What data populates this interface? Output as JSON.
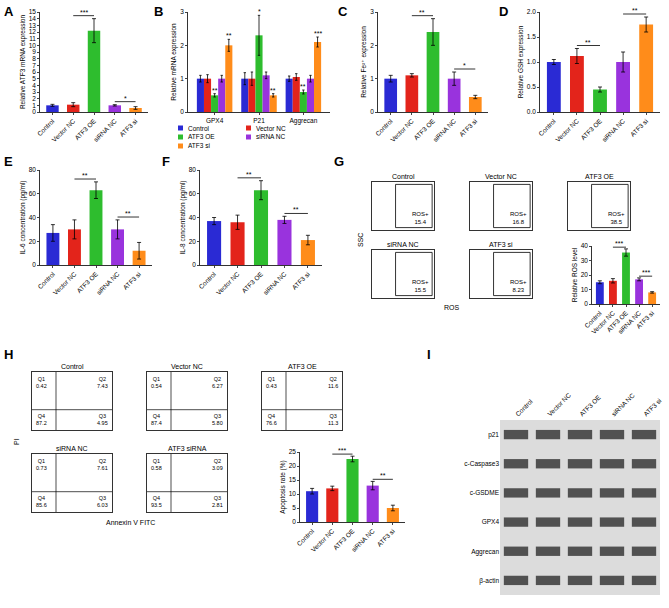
{
  "chart_data": [
    {
      "panel": "A",
      "type": "bar",
      "y_label": "Relative ATF3 mRNA expression",
      "categories": [
        "Control",
        "Vector NC",
        "ATF3 OE",
        "siRNA NC",
        "ATF3 si"
      ],
      "values": [
        1.0,
        1.1,
        12.2,
        1.0,
        0.6
      ],
      "errors": [
        0.15,
        0.3,
        1.8,
        0.1,
        0.2
      ],
      "colors": [
        "#2a2ad4",
        "#e3241b",
        "#2ebd2e",
        "#9933dd",
        "#ff8c1a"
      ],
      "ylim": [
        0,
        15
      ],
      "yticks": [
        0,
        1,
        2,
        3,
        4,
        5,
        6,
        7,
        8,
        9,
        10,
        11,
        12,
        13,
        14,
        15
      ],
      "significance": [
        {
          "from": "Vector NC",
          "to": "ATF3 OE",
          "text": "***"
        },
        {
          "from": "siRNA NC",
          "to": "ATF3 si",
          "text": "*"
        }
      ]
    },
    {
      "panel": "B",
      "type": "bar",
      "y_label": "Relative mRNA expression",
      "categories": [
        "GPX4",
        "P21",
        "Aggrecan"
      ],
      "legend": "bottom",
      "series": [
        {
          "name": "Control",
          "color": "#2a2ad4",
          "values": [
            1.0,
            1.0,
            1.0
          ],
          "errors": [
            0.1,
            0.18,
            0.08
          ],
          "significance": [
            null,
            null,
            null
          ]
        },
        {
          "name": "Vector NC",
          "color": "#e3241b",
          "values": [
            1.0,
            1.0,
            1.05
          ],
          "errors": [
            0.12,
            0.2,
            0.1
          ],
          "significance": [
            null,
            null,
            null
          ]
        },
        {
          "name": "ATF3 OE",
          "color": "#2ebd2e",
          "values": [
            0.5,
            2.3,
            0.6
          ],
          "errors": [
            0.05,
            0.6,
            0.06
          ],
          "significance": [
            "**",
            "*",
            "**"
          ]
        },
        {
          "name": "siRNA NC",
          "color": "#9933dd",
          "values": [
            1.0,
            1.1,
            1.0
          ],
          "errors": [
            0.1,
            0.1,
            0.1
          ],
          "significance": [
            null,
            null,
            null
          ]
        },
        {
          "name": "ATF3 si",
          "color": "#ff8c1a",
          "values": [
            2.0,
            0.5,
            2.1
          ],
          "errors": [
            0.18,
            0.05,
            0.15
          ],
          "significance": [
            "**",
            "**",
            "***"
          ]
        }
      ],
      "ylim": [
        0,
        3
      ],
      "yticks": [
        0,
        1,
        2,
        3
      ]
    },
    {
      "panel": "C",
      "type": "bar",
      "y_label": "Relative Fe²⁺ expression",
      "categories": [
        "Control",
        "Vector NC",
        "ATF3 OE",
        "siRNA NC",
        "ATF3 si"
      ],
      "values": [
        1.0,
        1.1,
        2.4,
        1.0,
        0.45
      ],
      "errors": [
        0.1,
        0.05,
        0.4,
        0.2,
        0.05
      ],
      "colors": [
        "#2a2ad4",
        "#e3241b",
        "#2ebd2e",
        "#9933dd",
        "#ff8c1a"
      ],
      "ylim": [
        0,
        3
      ],
      "yticks": [
        0,
        1,
        2,
        3
      ],
      "significance": [
        {
          "from": "Vector NC",
          "to": "ATF3 OE",
          "text": "**"
        },
        {
          "from": "siRNA NC",
          "to": "ATF3 si",
          "text": "*"
        }
      ]
    },
    {
      "panel": "D",
      "type": "bar",
      "y_label": "Relative GSH expression",
      "categories": [
        "Control",
        "Vector NC",
        "ATF3 OE",
        "siRNA NC",
        "ATF3 si"
      ],
      "values": [
        1.0,
        1.12,
        0.45,
        1.0,
        1.75
      ],
      "errors": [
        0.05,
        0.15,
        0.05,
        0.2,
        0.15
      ],
      "colors": [
        "#2a2ad4",
        "#e3241b",
        "#2ebd2e",
        "#9933dd",
        "#ff8c1a"
      ],
      "ylim": [
        0,
        2
      ],
      "yticks": [
        {
          "value": 0,
          "label": "0.0"
        },
        0.5,
        {
          "value": 1,
          "label": "1.0"
        },
        1.5,
        {
          "value": 2,
          "label": "2.0"
        }
      ],
      "significance": [
        {
          "from": "Vector NC",
          "to": "ATF3 OE",
          "text": "**"
        },
        {
          "from": "siRNA NC",
          "to": "ATF3 si",
          "text": "**"
        }
      ]
    },
    {
      "panel": "E",
      "type": "bar",
      "y_label": "IL-6 concentration (pg/ml)",
      "categories": [
        "Control",
        "Vector NC",
        "ATF3 OE",
        "siRNA NC",
        "ATF3 si"
      ],
      "values": [
        27,
        30,
        63,
        30,
        12
      ],
      "errors": [
        7,
        8,
        7,
        8,
        7
      ],
      "colors": [
        "#2a2ad4",
        "#e3241b",
        "#2ebd2e",
        "#9933dd",
        "#ff8c1a"
      ],
      "ylim": [
        0,
        80
      ],
      "yticks": [
        0,
        20,
        40,
        60,
        80
      ],
      "significance": [
        {
          "from": "Vector NC",
          "to": "ATF3 OE",
          "text": "**"
        },
        {
          "from": "siRNA NC",
          "to": "ATF3 si",
          "text": "**"
        }
      ]
    },
    {
      "panel": "F",
      "type": "bar",
      "y_label": "IL-8 concentration (pg/ml)",
      "categories": [
        "Control",
        "Vector NC",
        "ATF3 OE",
        "siRNA NC",
        "ATF3 si"
      ],
      "values": [
        37,
        36,
        63,
        38,
        21
      ],
      "errors": [
        3,
        6,
        8,
        3,
        4
      ],
      "colors": [
        "#2a2ad4",
        "#e3241b",
        "#2ebd2e",
        "#9933dd",
        "#ff8c1a"
      ],
      "ylim": [
        0,
        80
      ],
      "yticks": [
        0,
        20,
        40,
        60,
        80
      ],
      "significance": [
        {
          "from": "Vector NC",
          "to": "ATF3 OE",
          "text": "**"
        },
        {
          "from": "siRNA NC",
          "to": "ATF3 si",
          "text": "**"
        }
      ]
    },
    {
      "panel": "G",
      "type": "flow_cytometry",
      "x_label": "ROS",
      "y_label": "SSC",
      "tick_labels": false,
      "plots": [
        {
          "title": "Control",
          "gate_label": "ROS+",
          "value": 15.4
        },
        {
          "title": "Vector NC",
          "gate_label": "ROS+",
          "value": 16.8
        },
        {
          "title": "ATF3 OE",
          "gate_label": "ROS+",
          "value": 38.5
        },
        {
          "title": "siRNA NC",
          "gate_label": "ROS+",
          "value": 15.5
        },
        {
          "title": "ATF3 si",
          "gate_label": "ROS+",
          "value": 8.23
        }
      ],
      "summary": {
        "type": "bar",
        "y_label": "Relative ROS level",
        "categories": [
          "Control",
          "Vector NC",
          "ATF3 OE",
          "siRNA NC",
          "ATF3 si"
        ],
        "values": [
          15,
          16,
          35.5,
          17,
          8
        ],
        "errors": [
          1,
          1.5,
          2.5,
          1,
          0.5
        ],
        "colors": [
          "#2a2ad4",
          "#e3241b",
          "#2ebd2e",
          "#9933dd",
          "#ff8c1a"
        ],
        "ylim": [
          0,
          40
        ],
        "yticks": [
          0,
          10,
          20,
          30,
          40
        ],
        "significance": [
          {
            "from": "Vector NC",
            "to": "ATF3 OE",
            "text": "***"
          },
          {
            "from": "siRNA NC",
            "to": "ATF3 si",
            "text": "***"
          }
        ]
      }
    },
    {
      "panel": "H",
      "type": "flow_cytometry",
      "x_label": "Annexin V FITC",
      "y_label": "PI",
      "tick_labels": false,
      "plots": [
        {
          "title": "Control",
          "quadrants": [
            {
              "name": "Q1",
              "value": 0.42
            },
            {
              "name": "Q2",
              "value": 7.43
            },
            {
              "name": "Q3",
              "value": 4.95
            },
            {
              "name": "Q4",
              "value": 87.2
            }
          ]
        },
        {
          "title": "Vector NC",
          "quadrants": [
            {
              "name": "Q1",
              "value": 0.54
            },
            {
              "name": "Q2",
              "value": 6.27
            },
            {
              "name": "Q3",
              "value": 5.8,
              "label": "5.80"
            },
            {
              "name": "Q4",
              "value": 87.4
            }
          ]
        },
        {
          "title": "ATF3 OE",
          "quadrants": [
            {
              "name": "Q1",
              "value": 0.43
            },
            {
              "name": "Q2",
              "value": 11.6
            },
            {
              "name": "Q3",
              "value": 11.3
            },
            {
              "name": "Q4",
              "value": 76.6
            }
          ]
        },
        {
          "title": "siRNA NC",
          "quadrants": [
            {
              "name": "Q1",
              "value": 0.73
            },
            {
              "name": "Q2",
              "value": 7.61
            },
            {
              "name": "Q3",
              "value": 6.03
            },
            {
              "name": "Q4",
              "value": 85.6
            }
          ]
        },
        {
          "title": "ATF3 siRNA",
          "quadrants": [
            {
              "name": "Q1",
              "value": 0.58
            },
            {
              "name": "Q2",
              "value": 3.09
            },
            {
              "name": "Q3",
              "value": 2.81
            },
            {
              "name": "Q4",
              "value": 93.5
            }
          ]
        }
      ],
      "summary": {
        "type": "bar",
        "y_label": "Apoptosis rate (%)",
        "categories": [
          "Control",
          "Vector NC",
          "ATF3 OE",
          "siRNA NC",
          "ATF3 si"
        ],
        "values": [
          11,
          12,
          22.5,
          13,
          5
        ],
        "errors": [
          1,
          0.8,
          1,
          1.5,
          1
        ],
        "colors": [
          "#2a2ad4",
          "#e3241b",
          "#2ebd2e",
          "#9933dd",
          "#ff8c1a"
        ],
        "ylim": [
          0,
          25
        ],
        "yticks": [
          0,
          5,
          10,
          15,
          20,
          25
        ],
        "significance": [
          {
            "from": "Vector NC",
            "to": "ATF3 OE",
            "text": "***"
          },
          {
            "from": "siRNA NC",
            "to": "ATF3 si",
            "text": "**"
          }
        ]
      }
    },
    {
      "panel": "I",
      "type": "western_blot",
      "lanes": [
        "Control",
        "Vector NC",
        "ATF3 OE",
        "siRNA NC",
        "ATF3 si"
      ],
      "bands": [
        "p21",
        "c-Caspase3",
        "c-GSDME",
        "GPX4",
        "Aggrecan",
        "β-actin"
      ]
    }
  ]
}
